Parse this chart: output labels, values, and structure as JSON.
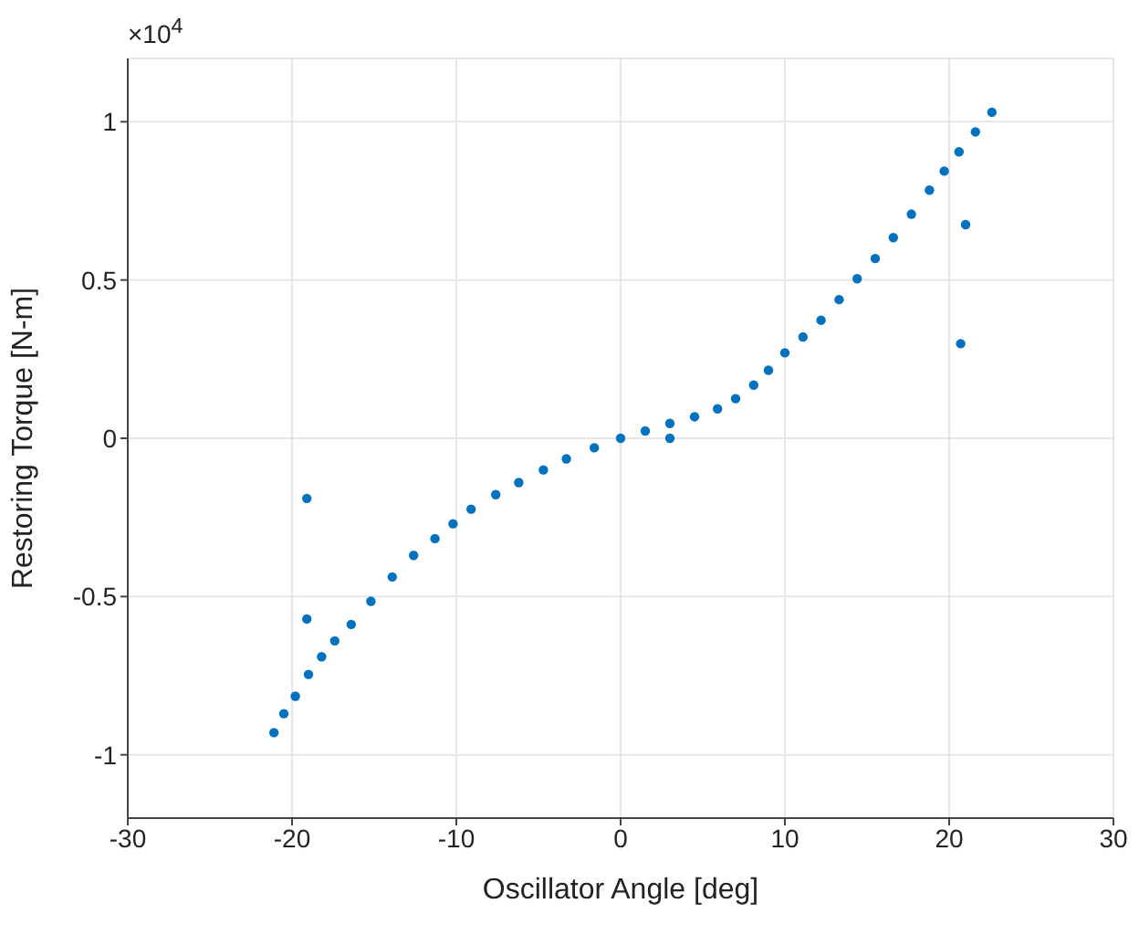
{
  "chart_data": {
    "type": "scatter",
    "xlabel": "Oscillator Angle [deg]",
    "ylabel": "Restoring Torque [N-m]",
    "annotations": [
      "×10$^{4}$"
    ],
    "xlim": [
      -30,
      30
    ],
    "xticks": [
      -30,
      -20,
      -10,
      0,
      10,
      20,
      30
    ],
    "ylim": [
      -1.2,
      1.2
    ],
    "yticks": [
      -1,
      -0.5,
      0,
      0.5,
      1
    ],
    "grid": true,
    "marker": "circle",
    "series": [
      {
        "color": "#0072bd",
        "x": [
          -21.1,
          -20.5,
          -19.8,
          -19.0,
          -18.2,
          -17.4,
          -16.4,
          -15.2,
          -13.9,
          -12.6,
          -11.3,
          -10.2,
          -9.1,
          -7.6,
          -6.2,
          -4.7,
          -3.3,
          -1.6,
          0,
          1.5,
          3.0,
          4.5,
          5.9,
          7.0,
          8.1,
          9.0,
          10.0,
          11.1,
          12.2,
          13.3,
          14.4,
          15.5,
          16.6,
          17.7,
          18.8,
          19.7,
          20.6,
          21.6,
          22.6,
          -19.1,
          -19.1,
          3.0,
          21.0,
          20.7
        ],
        "values": [
          -0.93,
          -0.87,
          -0.815,
          -0.746,
          -0.69,
          -0.64,
          -0.588,
          -0.515,
          -0.438,
          -0.37,
          -0.317,
          -0.27,
          -0.224,
          -0.178,
          -0.14,
          -0.1,
          -0.065,
          -0.03,
          0,
          0.023,
          0.047,
          0.068,
          0.093,
          0.125,
          0.168,
          0.215,
          0.27,
          0.32,
          0.373,
          0.438,
          0.504,
          0.568,
          0.634,
          0.708,
          0.784,
          0.844,
          0.905,
          0.968,
          1.03,
          -0.19,
          -0.571,
          0,
          0.675,
          0.299
        ]
      }
    ]
  }
}
